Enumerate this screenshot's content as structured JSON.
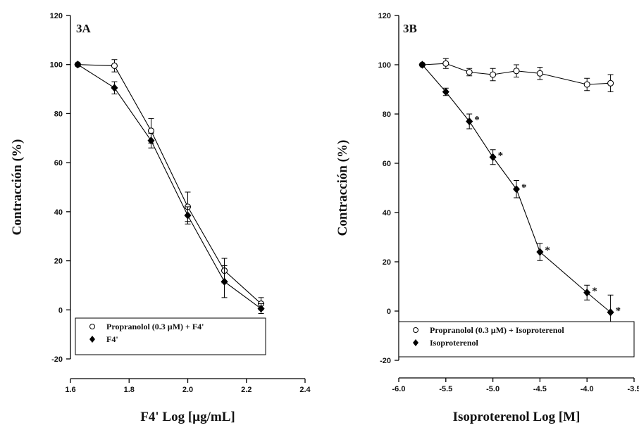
{
  "chart_data": [
    {
      "type": "line",
      "panel_label": "3A",
      "xlabel": "F4' Log [µg/mL]",
      "ylabel": "Contracción (%)",
      "xlim": [
        1.6,
        2.4
      ],
      "ylim": [
        -20,
        120
      ],
      "xticks": [
        1.6,
        1.8,
        2.0,
        2.2,
        2.4
      ],
      "xtick_labels": [
        "1.6",
        "1.8",
        "2.0",
        "2.2",
        "2.4"
      ],
      "yticks": [
        -20,
        0,
        20,
        40,
        60,
        80,
        100,
        120
      ],
      "ytick_labels": [
        "-20",
        "0",
        "20",
        "40",
        "60",
        "80",
        "100",
        "120"
      ],
      "grid": false,
      "legend_position": "bottom",
      "series": [
        {
          "name": "Propranolol (0.3 µM) + F4'",
          "marker": "open-circle",
          "x": [
            1.625,
            1.75,
            1.875,
            2.0,
            2.125,
            2.25
          ],
          "y": [
            100,
            99.5,
            73,
            42,
            16,
            2.5
          ],
          "err": [
            0,
            2.5,
            5,
            6,
            5,
            2.5
          ]
        },
        {
          "name": "F4'",
          "marker": "filled-diamond",
          "x": [
            1.625,
            1.75,
            1.875,
            2.0,
            2.125,
            2.25
          ],
          "y": [
            100,
            90.5,
            69,
            38.5,
            11.5,
            0.5
          ],
          "err": [
            0,
            2.5,
            3,
            3.5,
            6.5,
            2
          ]
        }
      ],
      "annotations": []
    },
    {
      "type": "line",
      "panel_label": "3B",
      "xlabel": "Isoproterenol Log [M]",
      "ylabel": "Contracción (%)",
      "xlim": [
        -6.0,
        -3.5
      ],
      "ylim": [
        -20,
        120
      ],
      "xticks": [
        -6.0,
        -5.5,
        -5.0,
        -4.5,
        -4.0,
        -3.5
      ],
      "xtick_labels": [
        "-6.0",
        "-5.5",
        "-5.0",
        "-4.5",
        "-4.0",
        "-3.5"
      ],
      "yticks": [
        -20,
        0,
        20,
        40,
        60,
        80,
        100,
        120
      ],
      "ytick_labels": [
        "-20",
        "0",
        "20",
        "40",
        "60",
        "80",
        "100",
        "120"
      ],
      "grid": false,
      "legend_position": "bottom",
      "series": [
        {
          "name": "Propranolol (0.3 µM) + Isoproterenol",
          "marker": "open-circle",
          "x": [
            -5.75,
            -5.5,
            -5.25,
            -5.0,
            -4.75,
            -4.5,
            -4.0,
            -3.75
          ],
          "y": [
            100,
            100.5,
            97,
            96,
            97.5,
            96.5,
            92,
            92.5
          ],
          "err": [
            0,
            2,
            1.5,
            2.5,
            2.5,
            2.5,
            2.5,
            3.5
          ]
        },
        {
          "name": "Isoproterenol",
          "marker": "filled-diamond",
          "x": [
            -5.75,
            -5.5,
            -5.25,
            -5.0,
            -4.75,
            -4.5,
            -4.0,
            -3.75
          ],
          "y": [
            100,
            89,
            77,
            62.5,
            49.5,
            24,
            7.5,
            -0.5
          ],
          "err": [
            0,
            1.5,
            3,
            3,
            3.5,
            3.5,
            3,
            7
          ]
        }
      ],
      "annotations": [
        {
          "text": "*",
          "x": -5.25,
          "y": 77
        },
        {
          "text": "*",
          "x": -5.0,
          "y": 62.5
        },
        {
          "text": "*",
          "x": -4.75,
          "y": 49.5
        },
        {
          "text": "*",
          "x": -4.5,
          "y": 24
        },
        {
          "text": "*",
          "x": -4.0,
          "y": 7.5
        },
        {
          "text": "*",
          "x": -3.75,
          "y": -0.5
        }
      ]
    }
  ]
}
